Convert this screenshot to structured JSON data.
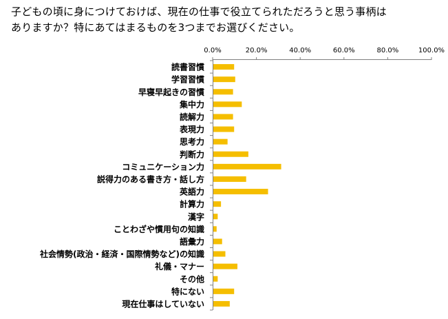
{
  "question": {
    "line1": "子どもの頃に身につけておけば、現在の仕事で役立てられただろうと思う事柄は",
    "line2": "ありますか？特にあてはまるものを3つまでお選びください。"
  },
  "chart_data": {
    "type": "bar",
    "orientation": "horizontal",
    "categories": [
      "読書習慣",
      "学習習慣",
      "早寝早起きの習慣",
      "集中力",
      "読解力",
      "表現力",
      "思考力",
      "判断力",
      "コミュニケーション力",
      "説得力のある書き方・話し方",
      "英語力",
      "計算力",
      "漢字",
      "ことわざや慣用句の知識",
      "語彙力",
      "社会情勢(政治・経済・国際情勢など)の知識",
      "礼儀・マナー",
      "その他",
      "特にない",
      "現在仕事はしていない"
    ],
    "values": [
      9.5,
      10,
      9,
      13,
      9,
      9.5,
      6.5,
      16,
      31,
      15,
      25,
      3.5,
      2,
      1.5,
      4,
      5.5,
      11,
      2,
      9.5,
      7.5
    ],
    "x_ticks": [
      "0.0%",
      "20.0%",
      "40.0%",
      "60.0%",
      "80.0%",
      "100.0%"
    ],
    "xlim": [
      0,
      100
    ],
    "grid": false,
    "bar_color": "#F5BE00",
    "axis_color": "#7F7F7F"
  }
}
